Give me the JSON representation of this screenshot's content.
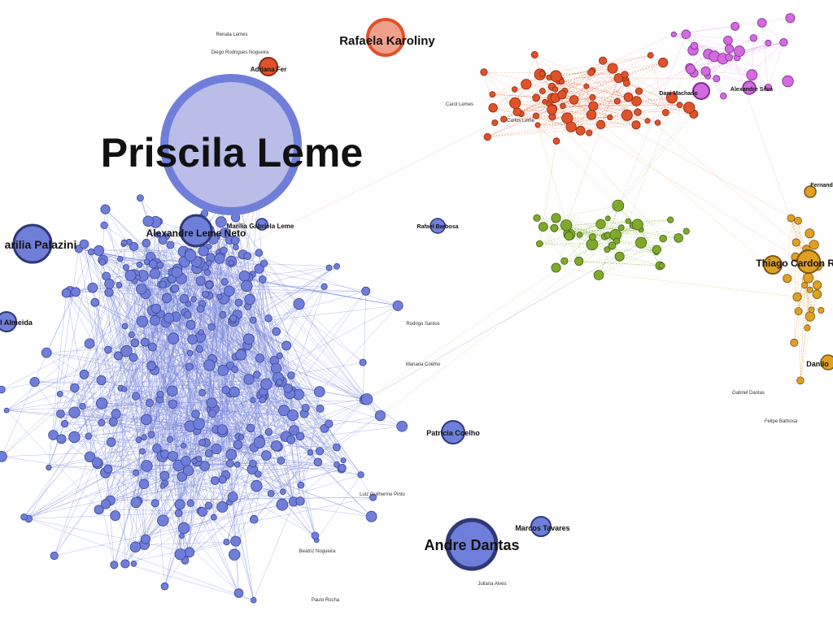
{
  "graph": {
    "clusters": {
      "blue": {
        "node": "#6f7fd9",
        "edge": "#7282d8",
        "stroke": "#3b4596"
      },
      "red": {
        "node": "#e0522a",
        "edge": "#e0663c",
        "stroke": "#8a2a10"
      },
      "purple": {
        "node": "#d36ae0",
        "edge": "#c468d8",
        "stroke": "#7a2b87"
      },
      "green": {
        "node": "#7eaa2a",
        "edge": "#8cb03c",
        "stroke": "#44601a"
      },
      "orange": {
        "node": "#e0a024",
        "edge": "#d89b2c",
        "stroke": "#7d5410"
      }
    },
    "major_labels": {
      "priscila": "Priscila Leme",
      "rafaela": "Rafaela Karoliny",
      "andre": "Andre Dantas",
      "alexandre": "Alexandre Leme Neto",
      "marilia_palazini": "arilia Palazini",
      "patricia": "Patricia Coelho",
      "thiago": "Thiago Cardon Rod",
      "almeida": "l Almeida",
      "rafael_barbosa": "Rafael Barbosa",
      "marilia_gabriela": "Marilia Gabriela Leme",
      "marcos": "Marcos Tavares",
      "adriana": "Adriana Fer",
      "dani": "Dani Machado",
      "alexandre_silva": "Alexandre Silva",
      "danilo": "Danilo",
      "fernand": "Fernand"
    },
    "minor_labels": [
      "Diego Rodrigues Nogueira",
      "Renata Lemes",
      "Carol Lemes",
      "Carlos Leme",
      "Rodrigo Santos",
      "Luiz Guilherme Pinto",
      "Beatriz Nogueira",
      "Gabriel Dantas",
      "Felipe Barbosa",
      "Juliana Alves",
      "Mariana Coelho",
      "Paulo Rocha"
    ]
  }
}
